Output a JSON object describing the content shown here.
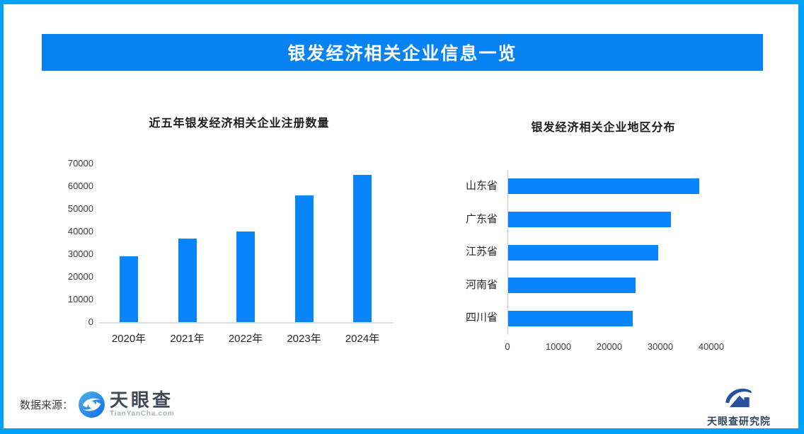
{
  "header": {
    "title": "银发经济相关企业信息一览"
  },
  "chart_data": [
    {
      "type": "bar",
      "title": "近五年银发经济相关企业注册数量",
      "categories": [
        "2020年",
        "2021年",
        "2022年",
        "2023年",
        "2024年"
      ],
      "values": [
        29000,
        36800,
        40000,
        56000,
        65000
      ],
      "xlabel": "",
      "ylabel": "",
      "ylim": [
        0,
        70000
      ],
      "yticks": [
        0,
        10000,
        20000,
        30000,
        40000,
        50000,
        60000,
        70000
      ],
      "grid": false,
      "legend_position": "none"
    },
    {
      "type": "bar-horizontal",
      "title": "银发经济相关企业地区分布",
      "categories": [
        "山东省",
        "广东省",
        "江苏省",
        "河南省",
        "四川省"
      ],
      "values": [
        37500,
        32000,
        29500,
        25000,
        24500
      ],
      "xlabel": "",
      "ylabel": "",
      "xlim": [
        0,
        47000
      ],
      "xticks": [
        0,
        10000,
        20000,
        30000,
        40000
      ],
      "grid": false,
      "legend_position": "none"
    }
  ],
  "footer": {
    "source_label": "数据来源：",
    "brand_name": "天眼查",
    "brand_domain": "TianYanCha.com",
    "institute_name": "天眼查研究院"
  },
  "colors": {
    "frame": "#01A1FA",
    "banner": "#0782F3",
    "bar": "#0985FB",
    "banner_text": "#FFFFFF"
  }
}
